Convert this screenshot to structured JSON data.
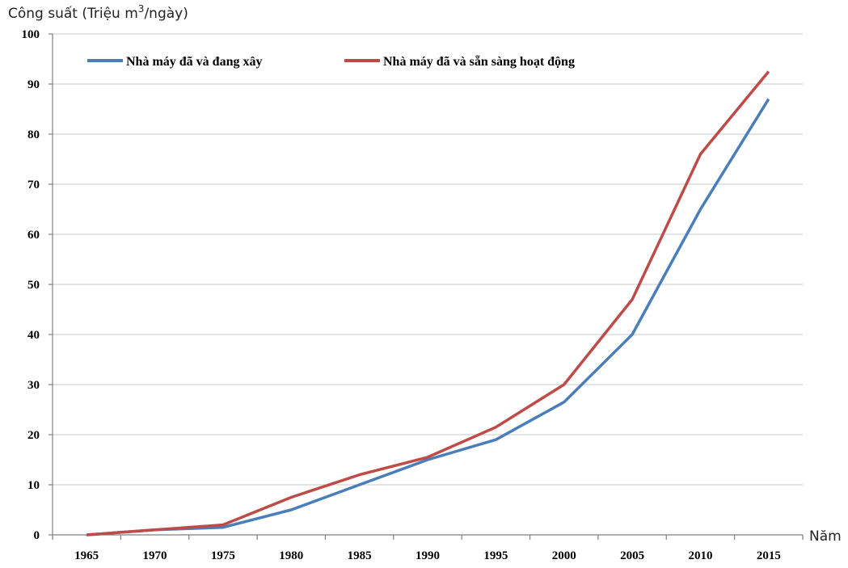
{
  "chart_data": {
    "type": "line",
    "ylabel_prefix": "Công suất (Triệu m",
    "ylabel_sup": "3",
    "ylabel_suffix": "/ngày)",
    "xlabel": "Năm",
    "categories": [
      "1965",
      "1970",
      "1975",
      "1980",
      "1985",
      "1990",
      "1995",
      "2000",
      "2005",
      "2010",
      "2015"
    ],
    "ylim": [
      0,
      100
    ],
    "yticks": [
      "0",
      "10",
      "20",
      "30",
      "40",
      "50",
      "60",
      "70",
      "80",
      "90",
      "100"
    ],
    "grid": true,
    "legend_position": "top",
    "series": [
      {
        "name": "Nhà máy đã và đang xây",
        "color": "#4a7ebb",
        "values": [
          0,
          1,
          1.5,
          5,
          10,
          15,
          19,
          26.5,
          40,
          65,
          87
        ]
      },
      {
        "name": "Nhà máy đã và sẵn sàng hoạt động",
        "color": "#be4b48",
        "values": [
          0,
          1,
          2,
          7.5,
          12,
          15.5,
          21.5,
          30,
          47,
          76,
          92.5
        ]
      }
    ]
  }
}
